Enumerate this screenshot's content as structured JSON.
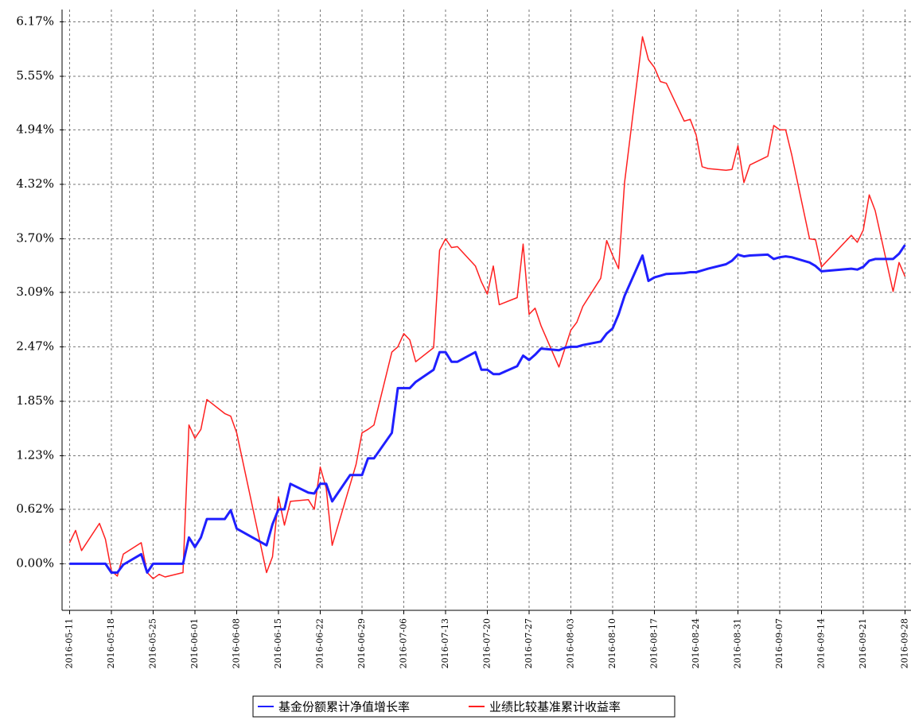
{
  "chart_data": {
    "type": "line",
    "x": [
      "2016-05-11",
      "2016-05-12",
      "2016-05-13",
      "2016-05-16",
      "2016-05-17",
      "2016-05-18",
      "2016-05-19",
      "2016-05-20",
      "2016-05-23",
      "2016-05-24",
      "2016-05-25",
      "2016-05-26",
      "2016-05-27",
      "2016-05-30",
      "2016-05-31",
      "2016-06-01",
      "2016-06-02",
      "2016-06-03",
      "2016-06-06",
      "2016-06-07",
      "2016-06-08",
      "2016-06-13",
      "2016-06-14",
      "2016-06-15",
      "2016-06-16",
      "2016-06-17",
      "2016-06-20",
      "2016-06-21",
      "2016-06-22",
      "2016-06-23",
      "2016-06-24",
      "2016-06-27",
      "2016-06-28",
      "2016-06-29",
      "2016-06-30",
      "2016-07-01",
      "2016-07-04",
      "2016-07-05",
      "2016-07-06",
      "2016-07-07",
      "2016-07-08",
      "2016-07-11",
      "2016-07-12",
      "2016-07-13",
      "2016-07-14",
      "2016-07-15",
      "2016-07-18",
      "2016-07-19",
      "2016-07-20",
      "2016-07-21",
      "2016-07-22",
      "2016-07-25",
      "2016-07-26",
      "2016-07-27",
      "2016-07-28",
      "2016-07-29",
      "2016-08-01",
      "2016-08-02",
      "2016-08-03",
      "2016-08-04",
      "2016-08-05",
      "2016-08-08",
      "2016-08-09",
      "2016-08-10",
      "2016-08-11",
      "2016-08-12",
      "2016-08-15",
      "2016-08-16",
      "2016-08-17",
      "2016-08-18",
      "2016-08-19",
      "2016-08-22",
      "2016-08-23",
      "2016-08-24",
      "2016-08-25",
      "2016-08-26",
      "2016-08-29",
      "2016-08-30",
      "2016-08-31",
      "2016-09-01",
      "2016-09-02",
      "2016-09-05",
      "2016-09-06",
      "2016-09-07",
      "2016-09-08",
      "2016-09-09",
      "2016-09-12",
      "2016-09-13",
      "2016-09-14",
      "2016-09-19",
      "2016-09-20",
      "2016-09-21",
      "2016-09-22",
      "2016-09-23",
      "2016-09-26",
      "2016-09-27",
      "2016-09-28"
    ],
    "series": [
      {
        "name": "基金份额累计净值增长率",
        "color": "#1f1fff",
        "values": [
          0,
          0,
          0,
          0,
          0,
          -0.1,
          -0.1,
          -0.01,
          0.11,
          -0.1,
          0,
          0,
          0,
          0,
          0.3,
          0.19,
          0.3,
          0.51,
          0.51,
          0.61,
          0.4,
          0.21,
          0.45,
          0.62,
          0.62,
          0.91,
          0.81,
          0.8,
          0.91,
          0.91,
          0.71,
          1.01,
          1.01,
          1.01,
          1.2,
          1.2,
          1.49,
          2.0,
          2.0,
          2.0,
          2.07,
          2.21,
          2.41,
          2.41,
          2.3,
          2.3,
          2.41,
          2.21,
          2.21,
          2.16,
          2.16,
          2.25,
          2.37,
          2.32,
          2.38,
          2.45,
          2.43,
          2.46,
          2.47,
          2.47,
          2.49,
          2.53,
          2.62,
          2.68,
          2.84,
          3.05,
          3.51,
          3.22,
          3.26,
          3.28,
          3.3,
          3.31,
          3.32,
          3.32,
          3.34,
          3.36,
          3.41,
          3.45,
          3.52,
          3.5,
          3.51,
          3.52,
          3.47,
          3.49,
          3.5,
          3.49,
          3.43,
          3.39,
          3.33,
          3.36,
          3.35,
          3.38,
          3.45,
          3.47,
          3.47,
          3.53,
          3.63
        ]
      },
      {
        "name": "业绩比较基准累计收益率",
        "color": "#ff2020",
        "values": [
          0.24,
          0.38,
          0.15,
          0.46,
          0.28,
          -0.08,
          -0.14,
          0.11,
          0.24,
          -0.1,
          -0.17,
          -0.12,
          -0.15,
          -0.1,
          1.58,
          1.43,
          1.53,
          1.87,
          1.71,
          1.68,
          1.49,
          -0.1,
          0.08,
          0.76,
          0.44,
          0.71,
          0.73,
          0.62,
          1.1,
          0.86,
          0.21,
          0.9,
          1.13,
          1.49,
          1.53,
          1.58,
          2.41,
          2.47,
          2.62,
          2.55,
          2.3,
          2.46,
          3.57,
          3.7,
          3.6,
          3.61,
          3.39,
          3.21,
          3.07,
          3.39,
          2.95,
          3.03,
          3.64,
          2.84,
          2.91,
          2.71,
          2.24,
          2.45,
          2.66,
          2.75,
          2.93,
          3.25,
          3.68,
          3.51,
          3.36,
          4.34,
          6.0,
          5.74,
          5.65,
          5.49,
          5.47,
          5.04,
          5.06,
          4.88,
          4.52,
          4.5,
          4.48,
          4.49,
          4.76,
          4.34,
          4.54,
          4.64,
          4.99,
          4.94,
          4.94,
          4.66,
          3.7,
          3.69,
          3.38,
          3.74,
          3.66,
          3.8,
          4.2,
          4.02,
          3.1,
          3.43,
          3.27
        ]
      }
    ],
    "xlim": [
      "2016-05-10",
      "2016-09-29"
    ],
    "xticks": [
      "2016-05-11",
      "2016-05-18",
      "2016-05-25",
      "2016-06-01",
      "2016-06-08",
      "2016-06-15",
      "2016-06-22",
      "2016-06-29",
      "2016-07-06",
      "2016-07-13",
      "2016-07-20",
      "2016-07-27",
      "2016-08-03",
      "2016-08-10",
      "2016-08-17",
      "2016-08-24",
      "2016-08-31",
      "2016-09-07",
      "2016-09-14",
      "2016-09-21",
      "2016-09-28"
    ],
    "ylim": [
      -0.53,
      6.31
    ],
    "yticks": [
      {
        "value": 0,
        "label": "0.00%"
      },
      {
        "value": 0.62,
        "label": "0.62%"
      },
      {
        "value": 1.23,
        "label": "1.23%"
      },
      {
        "value": 1.85,
        "label": "1.85%"
      },
      {
        "value": 2.47,
        "label": "2.47%"
      },
      {
        "value": 3.09,
        "label": "3.09%"
      },
      {
        "value": 3.7,
        "label": "3.70%"
      },
      {
        "value": 4.32,
        "label": "4.32%"
      },
      {
        "value": 4.94,
        "label": "4.94%"
      },
      {
        "value": 5.55,
        "label": "5.55%"
      },
      {
        "value": 6.17,
        "label": "6.17%"
      }
    ],
    "grid": true
  }
}
